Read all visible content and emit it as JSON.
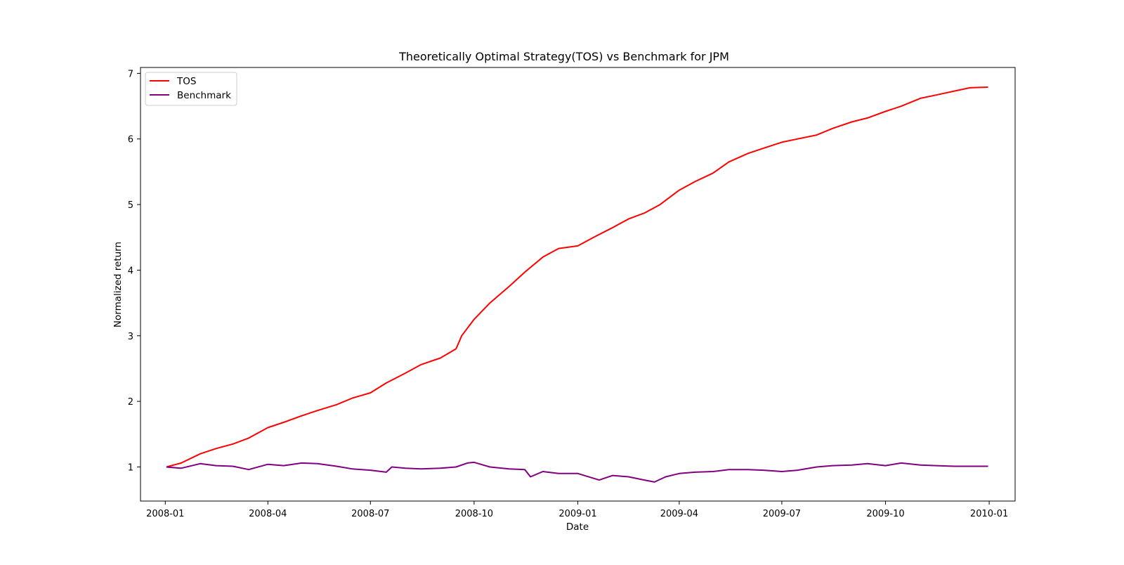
{
  "chart_data": {
    "type": "line",
    "title": "Theoretically Optimal Strategy(TOS) vs Benchmark for JPM",
    "xlabel": "Date",
    "ylabel": "Normalized return",
    "x_ticks": [
      "2008-01",
      "2008-04",
      "2008-07",
      "2008-10",
      "2009-01",
      "2009-04",
      "2009-07",
      "2009-10",
      "2010-01"
    ],
    "y_ticks": [
      1,
      2,
      3,
      4,
      5,
      6,
      7
    ],
    "xlim": [
      "2007-12-10",
      "2010-01-24"
    ],
    "ylim": [
      0.48,
      7.09
    ],
    "grid": false,
    "legend_position": "top-left",
    "series": [
      {
        "name": "TOS",
        "color": "#ff0000",
        "points": [
          [
            "2008-01-02",
            1.0
          ],
          [
            "2008-01-15",
            1.06
          ],
          [
            "2008-02-01",
            1.2
          ],
          [
            "2008-02-15",
            1.28
          ],
          [
            "2008-03-01",
            1.35
          ],
          [
            "2008-03-15",
            1.44
          ],
          [
            "2008-04-01",
            1.6
          ],
          [
            "2008-04-15",
            1.68
          ],
          [
            "2008-05-01",
            1.78
          ],
          [
            "2008-05-15",
            1.86
          ],
          [
            "2008-06-01",
            1.95
          ],
          [
            "2008-06-15",
            2.05
          ],
          [
            "2008-07-01",
            2.13
          ],
          [
            "2008-07-15",
            2.28
          ],
          [
            "2008-08-01",
            2.43
          ],
          [
            "2008-08-15",
            2.56
          ],
          [
            "2008-09-01",
            2.66
          ],
          [
            "2008-09-15",
            2.8
          ],
          [
            "2008-09-20",
            3.0
          ],
          [
            "2008-10-01",
            3.25
          ],
          [
            "2008-10-15",
            3.5
          ],
          [
            "2008-11-01",
            3.75
          ],
          [
            "2008-11-15",
            3.97
          ],
          [
            "2008-12-01",
            4.2
          ],
          [
            "2008-12-15",
            4.33
          ],
          [
            "2009-01-01",
            4.37
          ],
          [
            "2009-01-15",
            4.5
          ],
          [
            "2009-02-01",
            4.65
          ],
          [
            "2009-02-15",
            4.78
          ],
          [
            "2009-03-01",
            4.87
          ],
          [
            "2009-03-15",
            5.0
          ],
          [
            "2009-04-01",
            5.22
          ],
          [
            "2009-04-15",
            5.35
          ],
          [
            "2009-05-01",
            5.48
          ],
          [
            "2009-05-15",
            5.65
          ],
          [
            "2009-06-01",
            5.78
          ],
          [
            "2009-06-15",
            5.86
          ],
          [
            "2009-07-01",
            5.95
          ],
          [
            "2009-07-15",
            6.0
          ],
          [
            "2009-08-01",
            6.06
          ],
          [
            "2009-08-15",
            6.16
          ],
          [
            "2009-09-01",
            6.26
          ],
          [
            "2009-09-15",
            6.32
          ],
          [
            "2009-10-01",
            6.42
          ],
          [
            "2009-10-15",
            6.5
          ],
          [
            "2009-11-01",
            6.62
          ],
          [
            "2009-11-15",
            6.67
          ],
          [
            "2009-12-01",
            6.73
          ],
          [
            "2009-12-15",
            6.78
          ],
          [
            "2009-12-31",
            6.79
          ]
        ]
      },
      {
        "name": "Benchmark",
        "color": "#800080",
        "points": [
          [
            "2008-01-02",
            1.0
          ],
          [
            "2008-01-15",
            0.98
          ],
          [
            "2008-02-01",
            1.05
          ],
          [
            "2008-02-15",
            1.02
          ],
          [
            "2008-03-01",
            1.01
          ],
          [
            "2008-03-15",
            0.96
          ],
          [
            "2008-04-01",
            1.04
          ],
          [
            "2008-04-15",
            1.02
          ],
          [
            "2008-05-01",
            1.06
          ],
          [
            "2008-05-15",
            1.05
          ],
          [
            "2008-06-01",
            1.01
          ],
          [
            "2008-06-15",
            0.97
          ],
          [
            "2008-07-01",
            0.95
          ],
          [
            "2008-07-15",
            0.92
          ],
          [
            "2008-07-20",
            1.0
          ],
          [
            "2008-08-01",
            0.98
          ],
          [
            "2008-08-15",
            0.97
          ],
          [
            "2008-09-01",
            0.98
          ],
          [
            "2008-09-15",
            1.0
          ],
          [
            "2008-09-25",
            1.06
          ],
          [
            "2008-10-01",
            1.07
          ],
          [
            "2008-10-15",
            1.0
          ],
          [
            "2008-11-01",
            0.97
          ],
          [
            "2008-11-15",
            0.96
          ],
          [
            "2008-11-20",
            0.85
          ],
          [
            "2008-12-01",
            0.93
          ],
          [
            "2008-12-15",
            0.9
          ],
          [
            "2009-01-01",
            0.9
          ],
          [
            "2009-01-20",
            0.8
          ],
          [
            "2009-02-01",
            0.87
          ],
          [
            "2009-02-15",
            0.85
          ],
          [
            "2009-03-01",
            0.8
          ],
          [
            "2009-03-10",
            0.77
          ],
          [
            "2009-03-20",
            0.85
          ],
          [
            "2009-04-01",
            0.9
          ],
          [
            "2009-04-15",
            0.92
          ],
          [
            "2009-05-01",
            0.93
          ],
          [
            "2009-05-15",
            0.96
          ],
          [
            "2009-06-01",
            0.96
          ],
          [
            "2009-06-15",
            0.95
          ],
          [
            "2009-07-01",
            0.93
          ],
          [
            "2009-07-15",
            0.95
          ],
          [
            "2009-08-01",
            1.0
          ],
          [
            "2009-08-15",
            1.02
          ],
          [
            "2009-09-01",
            1.03
          ],
          [
            "2009-09-15",
            1.05
          ],
          [
            "2009-10-01",
            1.02
          ],
          [
            "2009-10-15",
            1.06
          ],
          [
            "2009-11-01",
            1.03
          ],
          [
            "2009-11-15",
            1.02
          ],
          [
            "2009-12-01",
            1.01
          ],
          [
            "2009-12-15",
            1.01
          ],
          [
            "2009-12-31",
            1.01
          ]
        ]
      }
    ]
  }
}
